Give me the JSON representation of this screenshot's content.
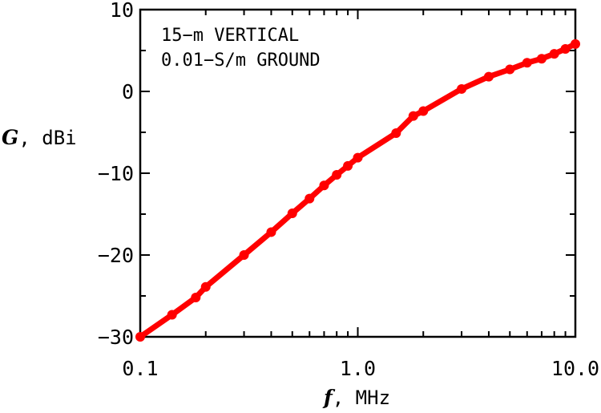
{
  "chart_data": {
    "type": "line",
    "x_scale": "log",
    "xlim": [
      0.1,
      10.0
    ],
    "ylim": [
      -30,
      10
    ],
    "x_ticks": [
      "0.1",
      "1.0",
      "10.0"
    ],
    "y_ticks": [
      "10",
      "0",
      "−10",
      "−20",
      "−30"
    ],
    "xlabel_var": "f",
    "xlabel_unit": ", MHz",
    "ylabel_var": "G",
    "ylabel_unit": ", dBi",
    "annotation": [
      "15−m VERTICAL",
      "0.01−S/m GROUND"
    ],
    "line_color": "#ff0000",
    "series": [
      {
        "x": [
          0.1,
          0.14,
          0.18,
          0.2,
          0.3,
          0.4,
          0.5,
          0.6,
          0.7,
          0.8,
          0.9,
          1.0,
          1.5,
          1.8,
          2.0,
          3.0,
          4.0,
          5.0,
          6.0,
          7.0,
          8.0,
          9.0,
          10.0
        ],
        "y": [
          -30.0,
          -27.3,
          -25.2,
          -23.9,
          -20.0,
          -17.2,
          -14.9,
          -13.1,
          -11.5,
          -10.2,
          -9.1,
          -8.1,
          -5.1,
          -3.0,
          -2.4,
          0.3,
          1.8,
          2.7,
          3.5,
          4.0,
          4.6,
          5.2,
          5.8
        ]
      }
    ]
  }
}
